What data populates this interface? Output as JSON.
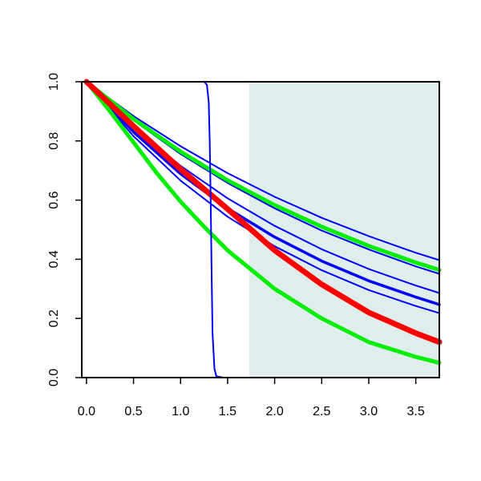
{
  "chart_data": {
    "type": "line",
    "title": "",
    "xlabel": "",
    "ylabel": "",
    "xlim": [
      -0.05,
      3.75
    ],
    "ylim": [
      0,
      1
    ],
    "grid": false,
    "legend": "none",
    "x_ticks": [
      "0.0",
      "0.5",
      "1.0",
      "1.5",
      "2.0",
      "2.5",
      "3.0",
      "3.5"
    ],
    "x_tick_values": [
      0,
      0.5,
      1,
      1.5,
      2,
      2.5,
      3,
      3.5
    ],
    "y_ticks": [
      "0.0",
      "0.2",
      "0.4",
      "0.6",
      "0.8",
      "1.0"
    ],
    "y_tick_values": [
      0,
      0.2,
      0.4,
      0.6,
      0.8,
      1.0
    ],
    "shaded_region": {
      "x_start": 1.73,
      "x_end": 3.75,
      "color": "#dfeded"
    },
    "series": [
      {
        "color": "#0000ff",
        "stroke": "thin",
        "points": [
          [
            0,
            1
          ],
          [
            0.5,
            0.884
          ],
          [
            1,
            0.782
          ],
          [
            1.5,
            0.691
          ],
          [
            2,
            0.611
          ],
          [
            2.5,
            0.54
          ],
          [
            3,
            0.478
          ],
          [
            3.5,
            0.422
          ],
          [
            3.75,
            0.397
          ]
        ]
      },
      {
        "color": "#0000ff",
        "stroke": "thin",
        "points": [
          [
            0,
            1
          ],
          [
            0.5,
            0.87
          ],
          [
            1,
            0.756
          ],
          [
            1.5,
            0.658
          ],
          [
            2,
            0.572
          ],
          [
            2.5,
            0.497
          ],
          [
            3,
            0.433
          ],
          [
            3.5,
            0.376
          ],
          [
            3.75,
            0.351
          ]
        ]
      },
      {
        "color": "#0000ff",
        "stroke": "thin",
        "points": [
          [
            0,
            1
          ],
          [
            0.5,
            0.846
          ],
          [
            1,
            0.716
          ],
          [
            1.5,
            0.606
          ],
          [
            2,
            0.513
          ],
          [
            2.5,
            0.434
          ],
          [
            3,
            0.367
          ],
          [
            3.5,
            0.311
          ],
          [
            3.75,
            0.286
          ]
        ]
      },
      {
        "color": "#0000ff",
        "stroke": "medium",
        "points": [
          [
            0,
            1
          ],
          [
            0.5,
            0.83
          ],
          [
            1,
            0.689
          ],
          [
            1.5,
            0.572
          ],
          [
            2,
            0.475
          ],
          [
            2.5,
            0.394
          ],
          [
            3,
            0.327
          ],
          [
            3.5,
            0.272
          ],
          [
            3.75,
            0.247
          ]
        ]
      },
      {
        "color": "#0000ff",
        "stroke": "thin",
        "points": [
          [
            0,
            1
          ],
          [
            0.5,
            0.816
          ],
          [
            1,
            0.666
          ],
          [
            1.5,
            0.544
          ],
          [
            2,
            0.444
          ],
          [
            2.5,
            0.363
          ],
          [
            3,
            0.296
          ],
          [
            3.5,
            0.242
          ],
          [
            3.75,
            0.218
          ]
        ]
      },
      {
        "color": "#00ee00",
        "stroke": "thick",
        "points": [
          [
            0,
            1
          ],
          [
            0.5,
            0.874
          ],
          [
            1,
            0.764
          ],
          [
            1.5,
            0.667
          ],
          [
            2,
            0.583
          ],
          [
            2.5,
            0.51
          ],
          [
            3,
            0.445
          ],
          [
            3.5,
            0.389
          ],
          [
            3.75,
            0.364
          ]
        ]
      },
      {
        "color": "#00ee00",
        "stroke": "thick",
        "points": [
          [
            0,
            1
          ],
          [
            0.25,
            0.9
          ],
          [
            0.5,
            0.795
          ],
          [
            0.75,
            0.69
          ],
          [
            1,
            0.595
          ],
          [
            1.25,
            0.51
          ],
          [
            1.5,
            0.43
          ],
          [
            2,
            0.3
          ],
          [
            2.5,
            0.2
          ],
          [
            3,
            0.12
          ],
          [
            3.5,
            0.07
          ],
          [
            3.75,
            0.05
          ]
        ]
      },
      {
        "color": "#ff0000",
        "stroke": "thickest",
        "points": [
          [
            0,
            1
          ],
          [
            0.5,
            0.85
          ],
          [
            1,
            0.705
          ],
          [
            1.5,
            0.57
          ],
          [
            2,
            0.43
          ],
          [
            2.5,
            0.315
          ],
          [
            3,
            0.22
          ],
          [
            3.5,
            0.15
          ],
          [
            3.75,
            0.12
          ]
        ]
      },
      {
        "color": "#0000ff",
        "stroke": "thin",
        "points": [
          [
            0,
            1
          ],
          [
            1.25,
            1
          ],
          [
            1.28,
            0.99
          ],
          [
            1.3,
            0.93
          ],
          [
            1.31,
            0.8
          ],
          [
            1.32,
            0.6
          ],
          [
            1.33,
            0.35
          ],
          [
            1.34,
            0.15
          ],
          [
            1.36,
            0.03
          ],
          [
            1.38,
            0.005
          ],
          [
            1.45,
            0
          ],
          [
            3.75,
            0
          ]
        ]
      }
    ]
  }
}
